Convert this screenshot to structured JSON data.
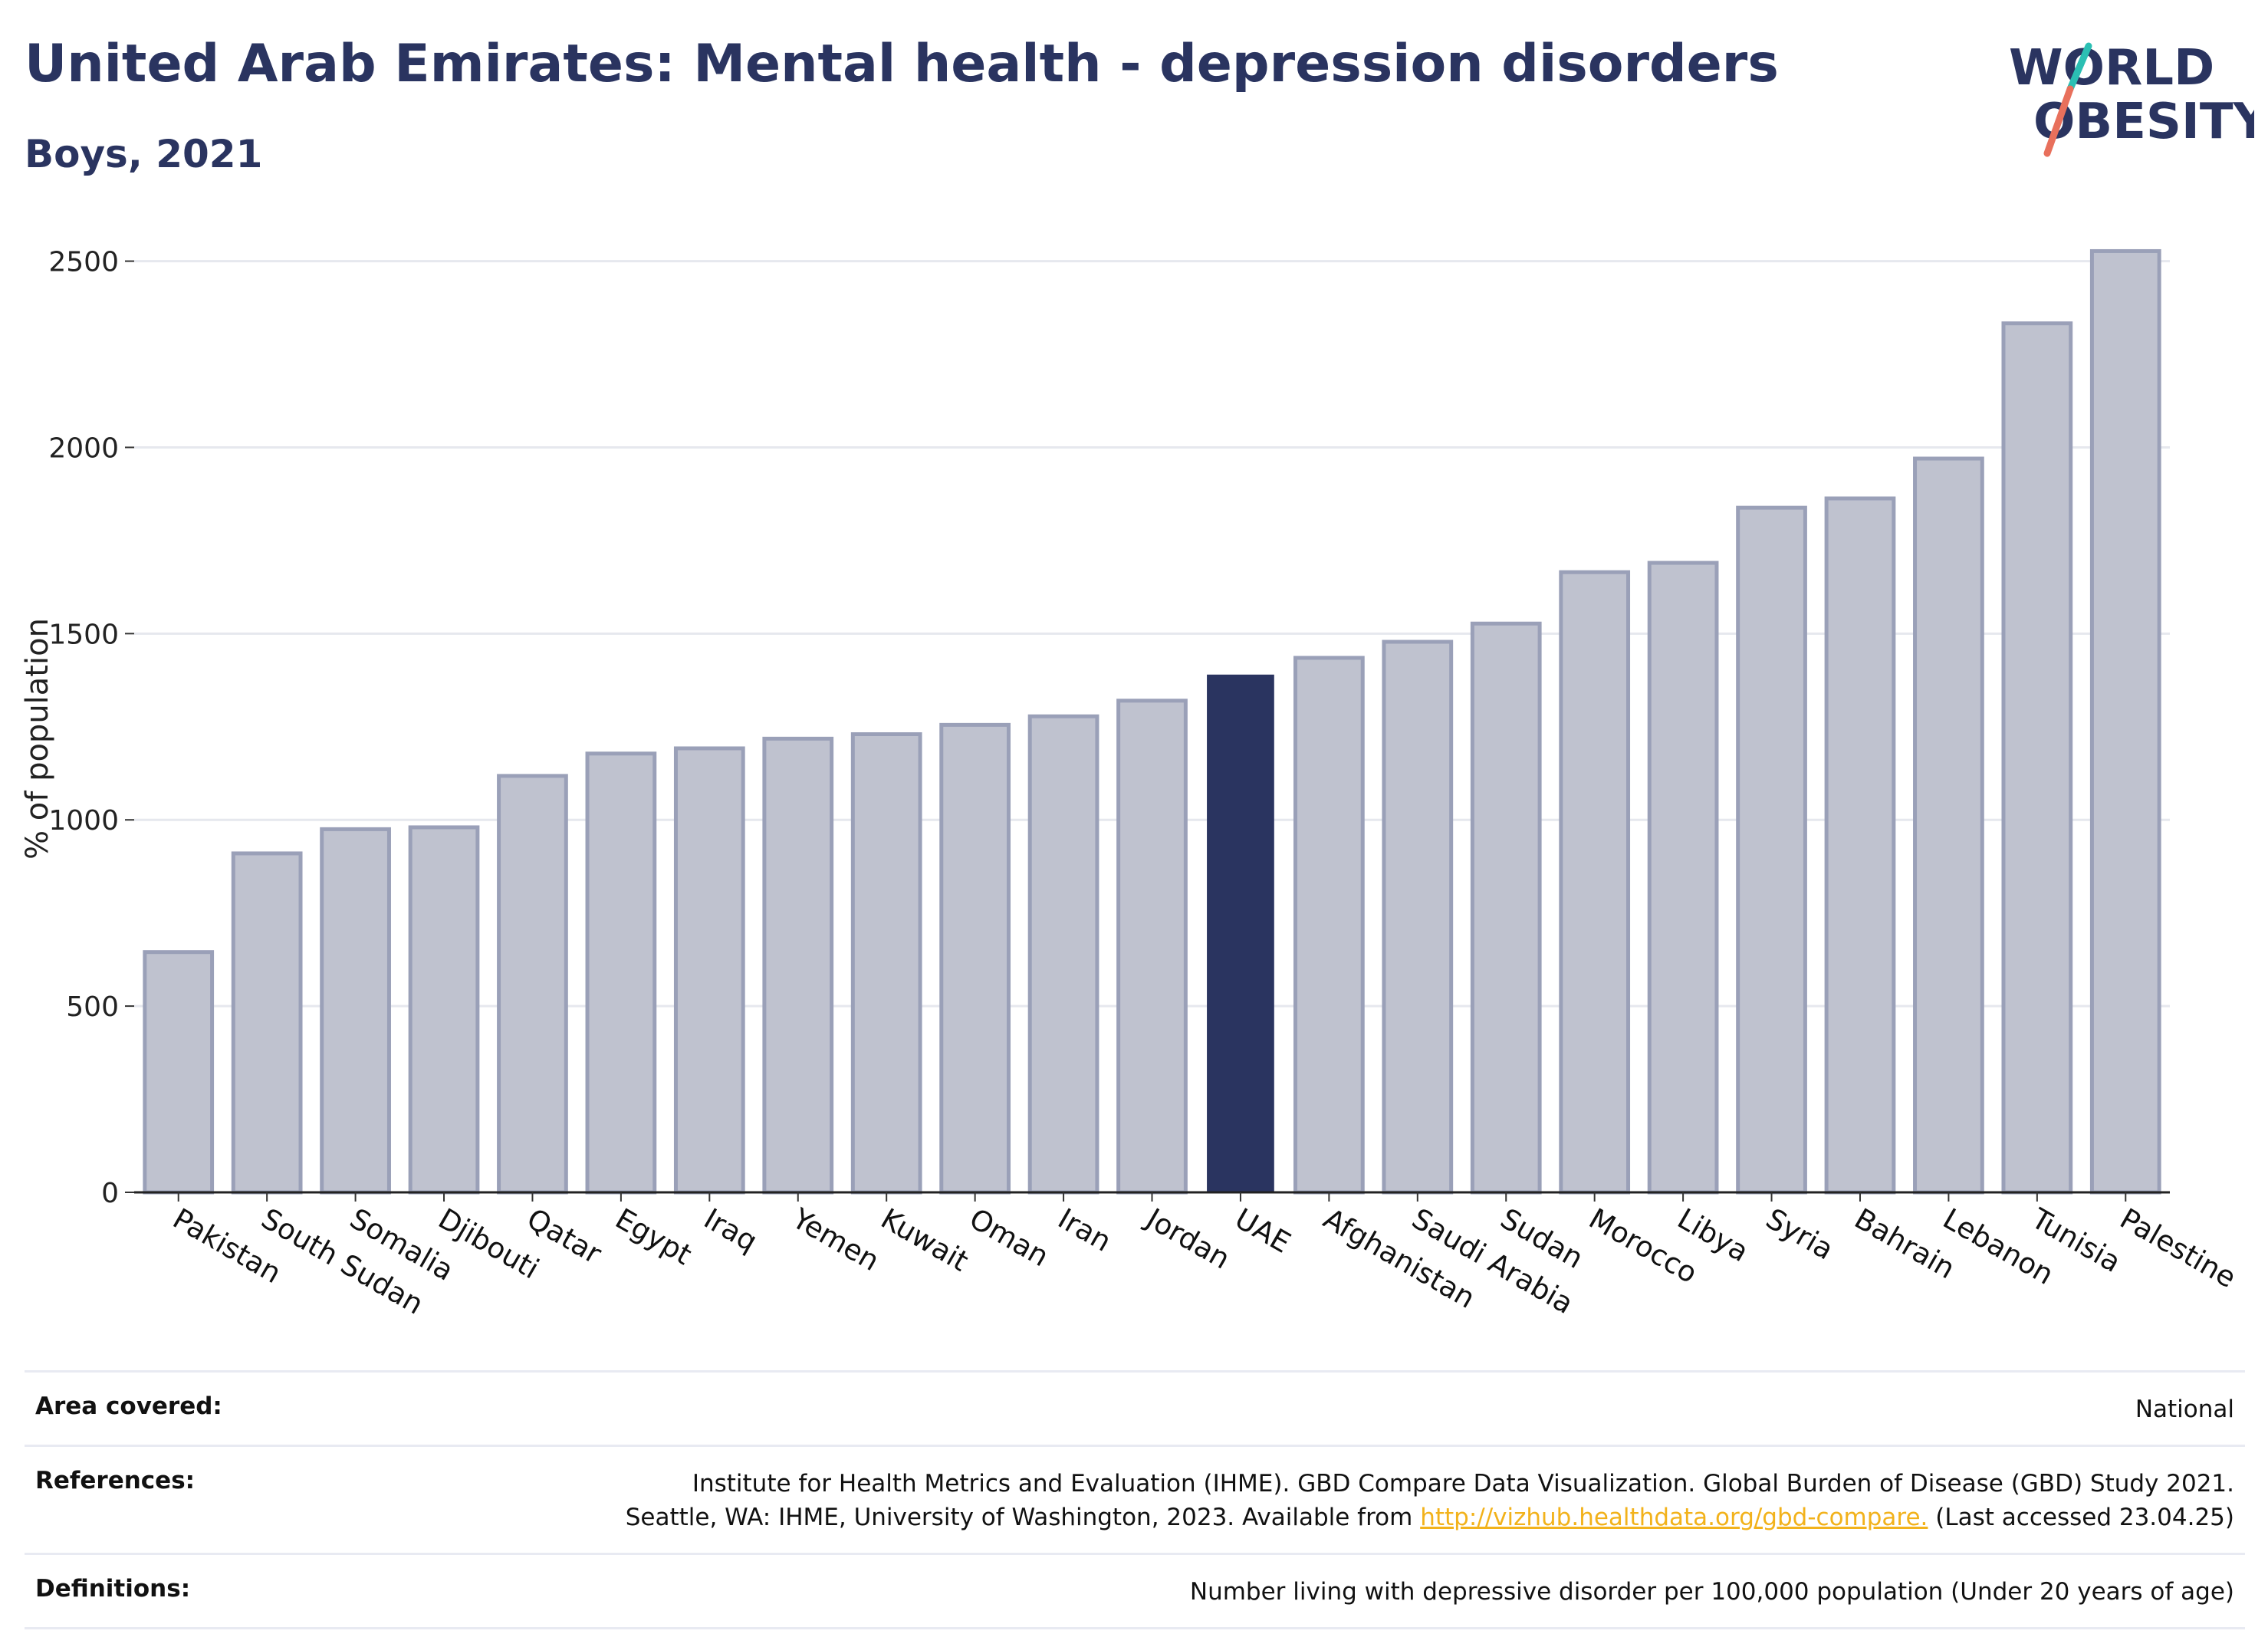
{
  "header": {
    "title": "United Arab Emirates: Mental health - depression disorders",
    "subtitle": "Boys, 2021"
  },
  "logo": {
    "line1": "WORLD",
    "line2": "OBESITY",
    "colors": {
      "text": "#2a3460",
      "slash_top": "#2bbfb3",
      "slash_bottom": "#e8705c"
    }
  },
  "chart_data": {
    "type": "bar",
    "ylabel": "% of population",
    "xlabel": "",
    "ylim": [
      0,
      2600
    ],
    "yticks": [
      0,
      500,
      1000,
      1500,
      2000,
      2500
    ],
    "grid": true,
    "highlight": "UAE",
    "colors": {
      "bar": "#bfc2cf",
      "bar_outline": "#9aa0b8",
      "highlight": "#2a3460"
    },
    "categories": [
      "Pakistan",
      "South Sudan",
      "Somalia",
      "Djibouti",
      "Qatar",
      "Egypt",
      "Iraq",
      "Yemen",
      "Kuwait",
      "Oman",
      "Iran",
      "Jordan",
      "UAE",
      "Afghanistan",
      "Saudi Arabia",
      "Sudan",
      "Morocco",
      "Libya",
      "Syria",
      "Bahrain",
      "Lebanon",
      "Tunisia",
      "Palestine"
    ],
    "values": [
      645,
      910,
      975,
      980,
      1118,
      1178,
      1192,
      1218,
      1230,
      1255,
      1278,
      1320,
      1390,
      1435,
      1478,
      1527,
      1665,
      1690,
      1838,
      1863,
      1970,
      2333,
      2527
    ]
  },
  "footer": {
    "area_label": "Area covered:",
    "area_value": "National",
    "references_label": "References:",
    "references_line1": "Institute for Health Metrics and Evaluation (IHME). GBD Compare Data Visualization. Global Burden of Disease (GBD) Study 2021.",
    "references_line2_pre": "Seattle, WA: IHME, University of Washington, 2023. Available from ",
    "references_link": "http://vizhub.healthdata.org/gbd-compare.",
    "references_line2_post": " (Last accessed 23.04.25)",
    "definitions_label": "Definitions:",
    "definitions_value": "Number living with depressive disorder per 100,000 population (Under 20 years of age)"
  }
}
